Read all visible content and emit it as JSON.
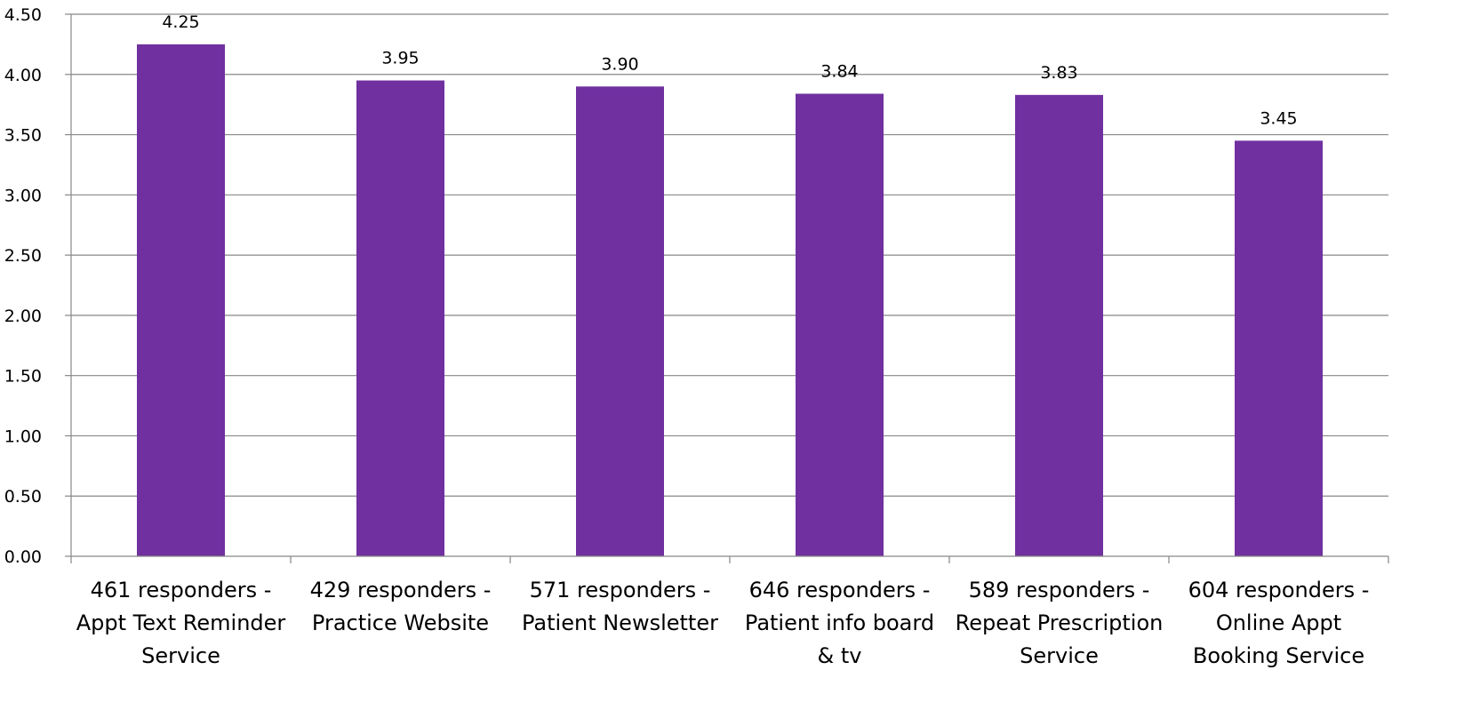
{
  "chart_data": {
    "type": "bar",
    "categories": [
      [
        "461 responders -",
        "Appt Text Reminder",
        "Service"
      ],
      [
        "429 responders -",
        "Practice Website"
      ],
      [
        "571 responders -",
        "Patient Newsletter"
      ],
      [
        "646 responders -",
        "Patient info board",
        "& tv"
      ],
      [
        "589 responders -",
        "Repeat Prescription",
        "Service"
      ],
      [
        "604 responders -",
        "Online Appt",
        "Booking Service"
      ]
    ],
    "values": [
      4.25,
      3.95,
      3.9,
      3.84,
      3.83,
      3.45
    ],
    "value_labels": [
      "4.25",
      "3.95",
      "3.90",
      "3.84",
      "3.83",
      "3.45"
    ],
    "y_ticks": [
      "0.00",
      "0.50",
      "1.00",
      "1.50",
      "2.00",
      "2.50",
      "3.00",
      "3.50",
      "4.00",
      "4.50"
    ],
    "ylim": [
      0,
      4.5
    ],
    "grid": true,
    "bar_color": "#7030A0",
    "grid_color": "#878787",
    "axis_color": "#878787"
  }
}
